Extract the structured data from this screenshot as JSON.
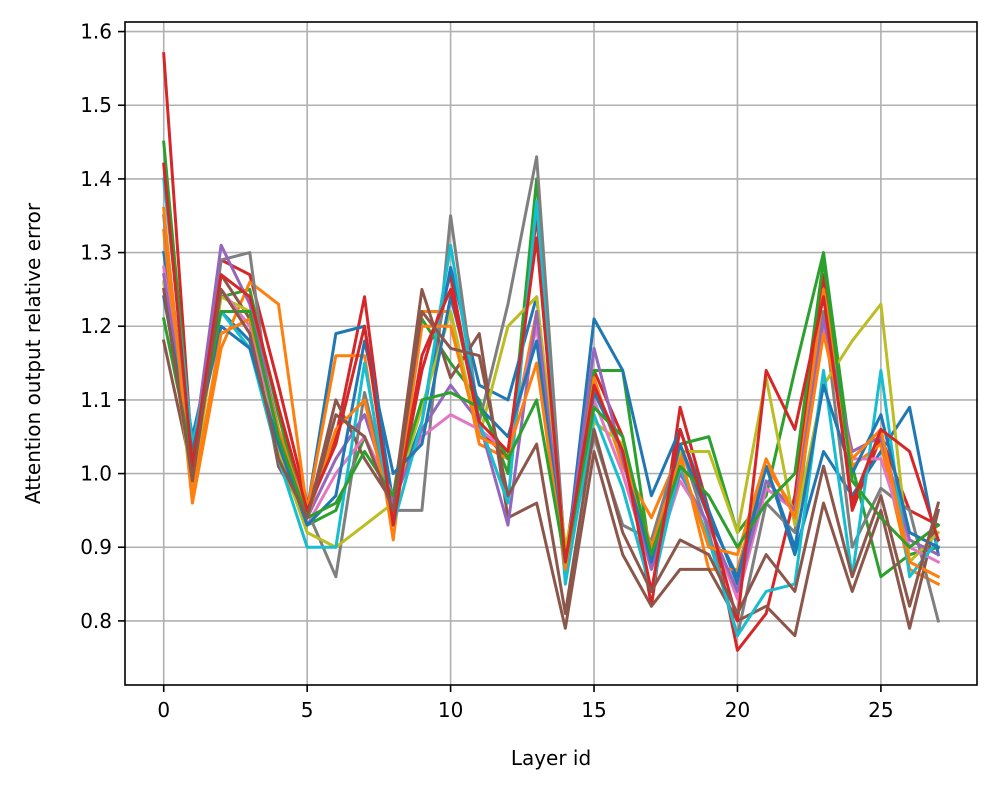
{
  "chart_data": {
    "type": "line",
    "title": "",
    "xlabel": "Layer id",
    "ylabel": "Attention output relative error",
    "xlim": [
      -1.35,
      28.35
    ],
    "ylim": [
      0.713,
      1.613
    ],
    "x_ticks": [
      0,
      5,
      10,
      15,
      20,
      25
    ],
    "x_tick_labels": [
      "0",
      "5",
      "10",
      "15",
      "20",
      "25"
    ],
    "y_ticks": [
      0.8,
      0.9,
      1.0,
      1.1,
      1.2,
      1.3,
      1.4,
      1.5,
      1.6
    ],
    "y_tick_labels": [
      "0.8",
      "0.9",
      "1.0",
      "1.1",
      "1.2",
      "1.3",
      "1.4",
      "1.5",
      "1.6"
    ],
    "grid": true,
    "legend": "none",
    "x": [
      0,
      1,
      2,
      3,
      4,
      5,
      6,
      7,
      8,
      9,
      10,
      11,
      12,
      13,
      14,
      15,
      16,
      17,
      18,
      19,
      20,
      21,
      22,
      23,
      24,
      25,
      26,
      27
    ],
    "series": [
      {
        "color": "#d62728",
        "values": [
          1.57,
          1.02,
          1.29,
          1.27,
          1.12,
          0.96,
          1.05,
          1.24,
          0.94,
          1.14,
          1.27,
          1.06,
          1.02,
          1.35,
          0.89,
          1.14,
          1.05,
          0.82,
          1.09,
          0.95,
          0.76,
          0.81,
          0.97,
          1.27,
          0.95,
          1.05,
          0.95,
          0.93
        ]
      },
      {
        "color": "#2ca02c",
        "values": [
          1.45,
          1.03,
          1.24,
          1.25,
          1.08,
          0.93,
          0.95,
          1.05,
          0.97,
          1.21,
          1.15,
          1.1,
          1.0,
          1.4,
          0.88,
          1.14,
          1.14,
          0.88,
          1.04,
          1.05,
          0.92,
          0.97,
          1.14,
          1.3,
          1.01,
          0.86,
          0.89,
          0.9
        ]
      },
      {
        "color": "#1f77b4",
        "values": [
          1.3,
          1.05,
          1.22,
          1.18,
          1.03,
          0.95,
          1.19,
          1.2,
          0.96,
          1.07,
          1.28,
          1.12,
          1.1,
          1.24,
          0.87,
          1.21,
          1.14,
          0.97,
          1.06,
          0.95,
          0.85,
          1.01,
          0.89,
          1.03,
          0.97,
          1.03,
          1.09,
          0.89
        ]
      },
      {
        "color": "#ff7f0e",
        "values": [
          1.33,
          0.96,
          1.17,
          1.26,
          1.23,
          0.95,
          1.16,
          1.16,
          0.91,
          1.22,
          1.22,
          1.04,
          1.02,
          1.22,
          0.86,
          1.13,
          1.01,
          0.94,
          1.03,
          0.87,
          0.87,
          1.01,
          0.95,
          1.25,
          1.01,
          1.04,
          0.87,
          0.85
        ]
      },
      {
        "color": "#7f7f7f",
        "values": [
          1.35,
          1.0,
          1.29,
          1.3,
          1.01,
          0.95,
          0.86,
          1.11,
          0.95,
          0.95,
          1.35,
          1.07,
          1.23,
          1.43,
          0.88,
          1.05,
          0.93,
          0.91,
          1.04,
          0.92,
          0.78,
          0.96,
          0.92,
          1.22,
          0.9,
          0.98,
          0.95,
          0.8
        ]
      },
      {
        "color": "#8c564b",
        "values": [
          1.18,
          1.0,
          1.27,
          1.21,
          1.01,
          0.94,
          1.1,
          1.02,
          0.96,
          1.25,
          1.13,
          1.19,
          0.94,
          0.96,
          0.79,
          1.03,
          0.89,
          0.82,
          0.87,
          0.87,
          0.8,
          0.82,
          0.78,
          0.96,
          0.84,
          0.95,
          0.79,
          0.95
        ]
      },
      {
        "color": "#bcbd22",
        "values": [
          1.26,
          0.98,
          1.24,
          1.22,
          1.03,
          0.92,
          0.9,
          0.93,
          0.96,
          1.09,
          1.22,
          1.05,
          1.2,
          1.24,
          0.9,
          1.07,
          1.04,
          0.87,
          1.03,
          1.03,
          0.92,
          1.13,
          0.93,
          1.12,
          1.18,
          1.23,
          0.88,
          0.92
        ]
      },
      {
        "color": "#e377c2",
        "values": [
          1.28,
          1.01,
          1.25,
          1.2,
          1.05,
          0.93,
          1.0,
          1.05,
          0.97,
          1.05,
          1.08,
          1.06,
          1.03,
          1.2,
          0.86,
          1.1,
          1.0,
          0.87,
          0.99,
          0.93,
          0.83,
          0.98,
          0.95,
          1.2,
          1.02,
          1.02,
          0.9,
          0.88
        ]
      },
      {
        "color": "#9467bd",
        "values": [
          1.27,
          1.02,
          1.31,
          1.23,
          1.06,
          0.94,
          1.02,
          1.08,
          0.96,
          1.06,
          1.12,
          1.07,
          0.93,
          1.22,
          0.87,
          1.17,
          1.02,
          0.87,
          1.0,
          0.93,
          0.84,
          0.99,
          0.95,
          1.21,
          1.03,
          1.05,
          0.91,
          0.89
        ]
      },
      {
        "color": "#17becf",
        "values": [
          1.4,
          1.04,
          1.22,
          1.17,
          1.02,
          0.9,
          0.9,
          1.15,
          0.93,
          1.07,
          1.31,
          1.07,
          0.96,
          1.37,
          0.85,
          1.08,
          0.98,
          0.84,
          1.01,
          0.91,
          0.78,
          0.84,
          0.85,
          1.14,
          0.86,
          1.14,
          0.86,
          0.91
        ]
      },
      {
        "color": "#1f77b4",
        "values": [
          1.24,
          1.03,
          1.2,
          1.17,
          1.04,
          0.93,
          0.97,
          1.18,
          1.0,
          1.04,
          1.24,
          1.09,
          1.05,
          1.18,
          0.87,
          1.11,
          1.03,
          0.88,
          1.04,
          0.94,
          0.86,
          1.01,
          0.9,
          1.12,
          1.0,
          1.08,
          0.92,
          0.9
        ]
      },
      {
        "color": "#ff7f0e",
        "values": [
          1.36,
          0.97,
          1.19,
          1.21,
          1.06,
          0.94,
          1.06,
          1.1,
          0.93,
          1.2,
          1.2,
          1.05,
          1.03,
          1.15,
          0.87,
          1.12,
          1.03,
          0.9,
          1.02,
          0.9,
          0.89,
          1.02,
          0.94,
          1.19,
          1.02,
          1.06,
          0.88,
          0.86
        ]
      },
      {
        "color": "#2ca02c",
        "values": [
          1.21,
          1.02,
          1.22,
          1.22,
          1.05,
          0.94,
          0.96,
          1.03,
          0.97,
          1.1,
          1.11,
          1.09,
          1.02,
          1.1,
          0.88,
          1.09,
          1.05,
          0.89,
          1.01,
          0.97,
          0.9,
          0.96,
          1.0,
          1.29,
          0.99,
          0.94,
          0.9,
          0.93
        ]
      },
      {
        "color": "#d62728",
        "values": [
          1.42,
          1.01,
          1.27,
          1.24,
          1.09,
          0.95,
          1.04,
          1.2,
          0.93,
          1.16,
          1.25,
          1.07,
          1.03,
          1.32,
          0.88,
          1.12,
          1.03,
          0.84,
          1.06,
          0.94,
          0.8,
          1.14,
          1.06,
          1.24,
          0.96,
          1.06,
          1.03,
          0.91
        ]
      },
      {
        "color": "#8c564b",
        "values": [
          1.25,
          0.99,
          1.25,
          1.19,
          1.02,
          0.94,
          1.08,
          1.05,
          0.95,
          1.22,
          1.17,
          1.16,
          0.97,
          1.04,
          0.81,
          1.06,
          0.92,
          0.84,
          0.91,
          0.89,
          0.81,
          0.89,
          0.84,
          1.01,
          0.86,
          0.97,
          0.82,
          0.96
        ]
      }
    ]
  }
}
